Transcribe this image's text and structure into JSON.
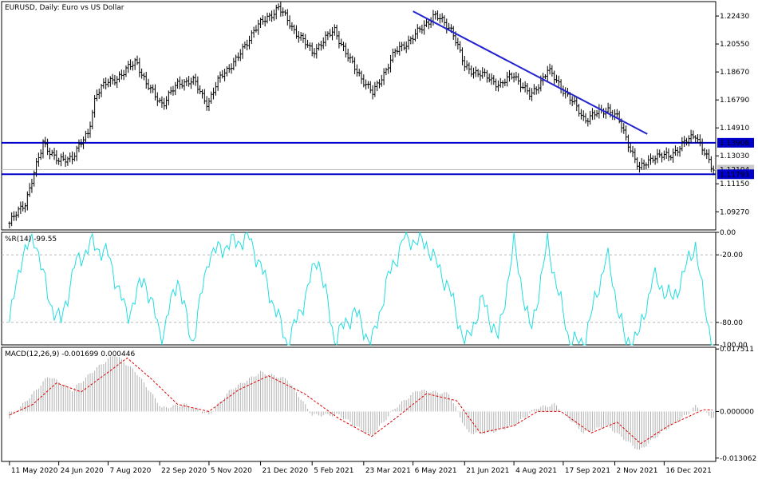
{
  "chart_data": {
    "type": "candlestick",
    "title": "EURUSD, Daily:  Euro vs US Dollar",
    "main": {
      "ylim": [
        1.0805,
        1.234
      ],
      "y_ticks": [
        "1.22430",
        "1.20550",
        "1.18670",
        "1.16790",
        "1.14910",
        "1.13030",
        "1.11150",
        "1.09270"
      ],
      "hlines": [
        {
          "label": "1.13908",
          "value": 1.13908
        },
        {
          "label": "1.11793",
          "value": 1.11793
        }
      ],
      "current_price": {
        "label": "1.12104",
        "value": 1.12104
      },
      "trendline": {
        "from": {
          "date": "2021-05-06",
          "value": 1.2275
        },
        "to": {
          "date": "2021-12-01",
          "value": 1.145
        }
      },
      "close_path": [
        [
          "2020-05-11",
          1.085
        ],
        [
          "2020-05-25",
          1.099
        ],
        [
          "2020-06-08",
          1.133
        ],
        [
          "2020-06-10",
          1.1395
        ],
        [
          "2020-06-24",
          1.126
        ],
        [
          "2020-07-06",
          1.13
        ],
        [
          "2020-07-20",
          1.145
        ],
        [
          "2020-07-27",
          1.172
        ],
        [
          "2020-08-07",
          1.18
        ],
        [
          "2020-08-20",
          1.185
        ],
        [
          "2020-09-01",
          1.195
        ],
        [
          "2020-09-10",
          1.178
        ],
        [
          "2020-09-25",
          1.165
        ],
        [
          "2020-10-09",
          1.18
        ],
        [
          "2020-10-23",
          1.18
        ],
        [
          "2020-11-04",
          1.165
        ],
        [
          "2020-11-16",
          1.185
        ],
        [
          "2020-11-30",
          1.195
        ],
        [
          "2020-12-15",
          1.215
        ],
        [
          "2021-01-06",
          1.23
        ],
        [
          "2021-01-20",
          1.215
        ],
        [
          "2021-02-05",
          1.2
        ],
        [
          "2021-02-25",
          1.215
        ],
        [
          "2021-03-10",
          1.195
        ],
        [
          "2021-03-31",
          1.172
        ],
        [
          "2021-04-20",
          1.2
        ],
        [
          "2021-05-06",
          1.21
        ],
        [
          "2021-05-25",
          1.225
        ],
        [
          "2021-06-10",
          1.215
        ],
        [
          "2021-06-21",
          1.19
        ],
        [
          "2021-07-06",
          1.185
        ],
        [
          "2021-07-23",
          1.178
        ],
        [
          "2021-08-04",
          1.185
        ],
        [
          "2021-08-19",
          1.17
        ],
        [
          "2021-09-03",
          1.188
        ],
        [
          "2021-09-17",
          1.175
        ],
        [
          "2021-10-06",
          1.155
        ],
        [
          "2021-10-27",
          1.162
        ],
        [
          "2021-11-05",
          1.155
        ],
        [
          "2021-11-24",
          1.121
        ],
        [
          "2021-12-06",
          1.13
        ],
        [
          "2021-12-20",
          1.13
        ],
        [
          "2022-01-13",
          1.145
        ],
        [
          "2022-01-28",
          1.121
        ]
      ]
    },
    "wpr": {
      "label": "%R(14) -99.55",
      "ylim": [
        -100,
        0
      ],
      "y_ticks": [
        "0.00",
        "-20.00",
        "-80.00",
        "-100.00"
      ],
      "levels": [
        -20,
        -80
      ],
      "path": [
        [
          "2020-05-11",
          -80
        ],
        [
          "2020-05-22",
          -20
        ],
        [
          "2020-06-03",
          -5
        ],
        [
          "2020-06-15",
          -60
        ],
        [
          "2020-06-26",
          -80
        ],
        [
          "2020-07-08",
          -30
        ],
        [
          "2020-07-23",
          -10
        ],
        [
          "2020-08-07",
          -20
        ],
        [
          "2020-08-24",
          -75
        ],
        [
          "2020-09-08",
          -40
        ],
        [
          "2020-09-24",
          -95
        ],
        [
          "2020-10-08",
          -40
        ],
        [
          "2020-10-21",
          -100
        ],
        [
          "2020-11-05",
          -20
        ],
        [
          "2020-11-24",
          -10
        ],
        [
          "2020-12-11",
          -5
        ],
        [
          "2020-12-21",
          -30
        ],
        [
          "2021-01-14",
          -100
        ],
        [
          "2021-01-29",
          -60
        ],
        [
          "2021-02-10",
          -20
        ],
        [
          "2021-02-25",
          -95
        ],
        [
          "2021-03-15",
          -70
        ],
        [
          "2021-03-30",
          -100
        ],
        [
          "2021-04-14",
          -40
        ],
        [
          "2021-04-28",
          -5
        ],
        [
          "2021-05-18",
          -10
        ],
        [
          "2021-06-07",
          -50
        ],
        [
          "2021-06-22",
          -100
        ],
        [
          "2021-07-07",
          -60
        ],
        [
          "2021-07-21",
          -95
        ],
        [
          "2021-08-04",
          -10
        ],
        [
          "2021-08-19",
          -90
        ],
        [
          "2021-09-03",
          -10
        ],
        [
          "2021-09-22",
          -95
        ],
        [
          "2021-10-05",
          -100
        ],
        [
          "2021-10-26",
          -20
        ],
        [
          "2021-11-12",
          -100
        ],
        [
          "2021-11-24",
          -90
        ],
        [
          "2021-12-06",
          -40
        ],
        [
          "2021-12-24",
          -60
        ],
        [
          "2022-01-13",
          -10
        ],
        [
          "2022-01-20",
          -60
        ],
        [
          "2022-01-28",
          -100
        ]
      ]
    },
    "macd": {
      "label": "MACD(12,26,9) -0.001699 0.000446",
      "ylim": [
        -0.014,
        0.018
      ],
      "y_ticks": [
        "0.017511",
        "0.000000",
        "-0.013062"
      ],
      "hist": [
        [
          "2020-05-11",
          -0.002
        ],
        [
          "2020-06-01",
          0.005
        ],
        [
          "2020-06-15",
          0.01
        ],
        [
          "2020-07-06",
          0.006
        ],
        [
          "2020-07-27",
          0.012
        ],
        [
          "2020-08-13",
          0.016
        ],
        [
          "2020-09-01",
          0.011
        ],
        [
          "2020-09-24",
          0.001
        ],
        [
          "2020-10-15",
          0.002
        ],
        [
          "2020-11-05",
          -0.001
        ],
        [
          "2020-11-24",
          0.006
        ],
        [
          "2020-12-21",
          0.011
        ],
        [
          "2021-01-14",
          0.009
        ],
        [
          "2021-02-05",
          -0.001
        ],
        [
          "2021-03-01",
          -0.001
        ],
        [
          "2021-03-30",
          -0.007
        ],
        [
          "2021-04-20",
          0.001
        ],
        [
          "2021-05-10",
          0.006
        ],
        [
          "2021-06-07",
          0.005
        ],
        [
          "2021-06-24",
          -0.006
        ],
        [
          "2021-07-12",
          -0.006
        ],
        [
          "2021-08-04",
          -0.004
        ],
        [
          "2021-08-24",
          0.001
        ],
        [
          "2021-09-10",
          0.002
        ],
        [
          "2021-10-05",
          -0.006
        ],
        [
          "2021-10-26",
          -0.004
        ],
        [
          "2021-11-24",
          -0.011
        ],
        [
          "2021-12-13",
          -0.006
        ],
        [
          "2022-01-05",
          -0.001
        ],
        [
          "2022-01-13",
          0.0015
        ],
        [
          "2022-01-28",
          -0.0017
        ]
      ],
      "signal": [
        [
          "2020-05-11",
          -0.001
        ],
        [
          "2020-06-01",
          0.002
        ],
        [
          "2020-06-22",
          0.008
        ],
        [
          "2020-07-14",
          0.0055
        ],
        [
          "2020-08-07",
          0.011
        ],
        [
          "2020-08-24",
          0.015
        ],
        [
          "2020-09-15",
          0.009
        ],
        [
          "2020-10-08",
          0.002
        ],
        [
          "2020-11-05",
          0.0
        ],
        [
          "2020-12-01",
          0.006
        ],
        [
          "2020-12-28",
          0.01
        ],
        [
          "2021-01-29",
          0.005
        ],
        [
          "2021-03-01",
          -0.002
        ],
        [
          "2021-03-30",
          -0.007
        ],
        [
          "2021-04-20",
          -0.002
        ],
        [
          "2021-05-18",
          0.005
        ],
        [
          "2021-06-14",
          0.003
        ],
        [
          "2021-07-05",
          -0.006
        ],
        [
          "2021-08-04",
          -0.004
        ],
        [
          "2021-08-25",
          0.0
        ],
        [
          "2021-09-15",
          0.0
        ],
        [
          "2021-10-12",
          -0.006
        ],
        [
          "2021-11-04",
          -0.003
        ],
        [
          "2021-11-25",
          -0.009
        ],
        [
          "2021-12-20",
          -0.004
        ],
        [
          "2022-01-20",
          0.0005
        ],
        [
          "2022-01-28",
          0.0004
        ]
      ]
    },
    "x_ticks": [
      {
        "label": "11 May 2020",
        "date": "2020-05-11"
      },
      {
        "label": "24 Jun 2020",
        "date": "2020-06-24"
      },
      {
        "label": "7 Aug 2020",
        "date": "2020-08-07"
      },
      {
        "label": "22 Sep 2020",
        "date": "2020-09-22"
      },
      {
        "label": "5 Nov 2020",
        "date": "2020-11-05"
      },
      {
        "label": "21 Dec 2020",
        "date": "2020-12-21"
      },
      {
        "label": "5 Feb 2021",
        "date": "2021-02-05"
      },
      {
        "label": "23 Mar 2021",
        "date": "2021-03-23"
      },
      {
        "label": "6 May 2021",
        "date": "2021-05-06"
      },
      {
        "label": "21 Jun 2021",
        "date": "2021-06-21"
      },
      {
        "label": "4 Aug 2021",
        "date": "2021-08-04"
      },
      {
        "label": "17 Sep 2021",
        "date": "2021-09-17"
      },
      {
        "label": "2 Nov 2021",
        "date": "2021-11-02"
      },
      {
        "label": "16 Dec 2021",
        "date": "2021-12-16"
      }
    ],
    "colors": {
      "price": "#000000",
      "hline": "#0000cc",
      "trendline": "#2323d0",
      "wpr": "#22dde0",
      "hist": "#b0b0b0",
      "signal": "#e00000",
      "grid": "#b8b8b8"
    }
  }
}
